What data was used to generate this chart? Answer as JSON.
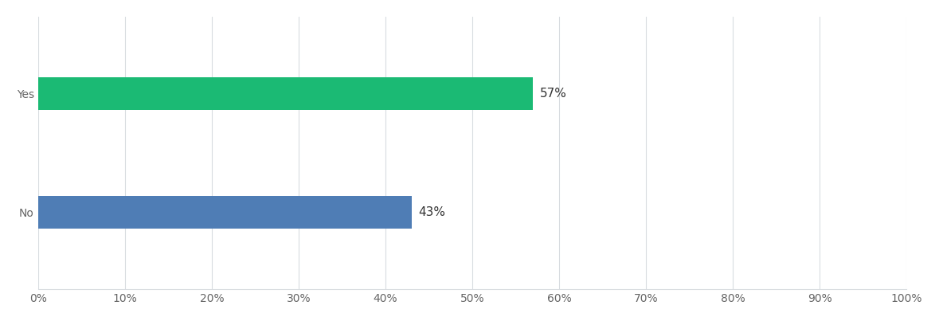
{
  "categories": [
    "No",
    "Yes"
  ],
  "values": [
    43,
    57
  ],
  "bar_colors": [
    "#4f7db5",
    "#1bba74"
  ],
  "labels": [
    "43%",
    "57%"
  ],
  "background_color": "#ffffff",
  "grid_color": "#d8dce0",
  "text_color": "#333333",
  "tick_label_color": "#666666",
  "xlim": [
    0,
    100
  ],
  "xticks": [
    0,
    10,
    20,
    30,
    40,
    50,
    60,
    70,
    80,
    90,
    100
  ],
  "bar_height": 0.28,
  "label_fontsize": 11,
  "tick_fontsize": 10,
  "ytick_fontsize": 10,
  "figsize": [
    11.79,
    4.03
  ],
  "dpi": 100
}
